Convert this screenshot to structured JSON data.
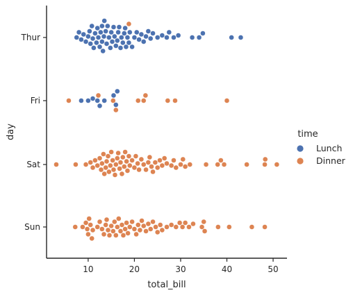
{
  "chart_data": {
    "type": "scatter",
    "subtype": "swarm",
    "title": "",
    "xlabel": "total_bill",
    "ylabel": "day",
    "xlim": [
      1,
      53
    ],
    "xticks": [
      10,
      20,
      30,
      40,
      50
    ],
    "categories": [
      "Thur",
      "Fri",
      "Sat",
      "Sun"
    ],
    "grid": false,
    "legend": {
      "title": "time",
      "placement": "right"
    },
    "series": [
      {
        "name": "Lunch",
        "color": "#4c72b0",
        "points": [
          {
            "category": "Thur",
            "values": [
              7.5,
              8.0,
              8.5,
              9.0,
              9.5,
              10.0,
              10.3,
              10.5,
              10.8,
              11.0,
              11.2,
              11.5,
              11.8,
              12.0,
              12.2,
              12.5,
              12.7,
              13.0,
              13.0,
              13.2,
              13.4,
              13.5,
              13.8,
              14.0,
              14.2,
              14.5,
              14.8,
              15.0,
              15.2,
              15.5,
              15.7,
              16.0,
              16.3,
              16.5,
              16.7,
              17.0,
              17.2,
              17.5,
              17.8,
              18.0,
              18.2,
              18.5,
              18.8,
              19.0,
              19.5,
              20.0,
              20.5,
              21.0,
              21.5,
              22.0,
              22.5,
              23.0,
              23.5,
              24.0,
              25.0,
              26.0,
              27.0,
              27.5,
              28.5,
              29.5,
              32.5,
              34.0,
              34.8,
              41.0,
              43.0
            ]
          },
          {
            "category": "Fri",
            "values": [
              8.5,
              10.0,
              11.0,
              12.0,
              12.5,
              13.5,
              15.5,
              16.0,
              16.3
            ]
          },
          {
            "category": "Sat",
            "values": []
          },
          {
            "category": "Sun",
            "values": []
          }
        ]
      },
      {
        "name": "Dinner",
        "color": "#dd8452",
        "points": [
          {
            "category": "Thur",
            "values": [
              18.8
            ]
          },
          {
            "category": "Fri",
            "values": [
              5.8,
              12.2,
              15.4,
              16.0,
              20.8,
              22.0,
              22.4,
              27.2,
              28.8,
              40.0
            ]
          },
          {
            "category": "Sat",
            "values": [
              3.1,
              7.3,
              9.5,
              10.5,
              11.0,
              11.5,
              12.0,
              12.5,
              12.8,
              13.0,
              13.3,
              13.5,
              13.8,
              14.0,
              14.3,
              14.5,
              14.8,
              15.0,
              15.3,
              15.5,
              15.8,
              16.0,
              16.3,
              16.5,
              16.8,
              17.0,
              17.3,
              17.5,
              17.8,
              18.0,
              18.3,
              18.5,
              18.8,
              19.0,
              19.5,
              20.0,
              20.3,
              20.7,
              21.0,
              21.5,
              22.0,
              22.5,
              23.0,
              23.3,
              23.7,
              24.0,
              24.5,
              25.0,
              25.5,
              26.0,
              26.5,
              27.0,
              28.0,
              28.5,
              29.0,
              30.0,
              30.5,
              31.0,
              32.0,
              35.5,
              38.0,
              38.7,
              39.4,
              44.3,
              48.2,
              48.3,
              50.8
            ]
          },
          {
            "category": "Sun",
            "values": [
              7.2,
              8.8,
              9.5,
              9.8,
              10.0,
              10.2,
              10.5,
              10.8,
              11.0,
              12.0,
              12.5,
              13.0,
              13.4,
              13.8,
              14.0,
              14.3,
              14.6,
              15.0,
              15.4,
              15.7,
              16.0,
              16.3,
              16.6,
              17.0,
              17.3,
              17.6,
              18.0,
              18.3,
              18.6,
              19.0,
              19.5,
              20.0,
              20.4,
              20.8,
              21.2,
              21.6,
              22.0,
              22.5,
              23.0,
              23.5,
              24.0,
              24.6,
              25.0,
              25.6,
              26.0,
              27.0,
              28.0,
              29.0,
              29.8,
              30.4,
              31.0,
              31.8,
              32.7,
              34.6,
              35.0,
              35.2,
              38.1,
              40.5,
              45.4,
              48.2
            ]
          }
        ]
      }
    ]
  }
}
